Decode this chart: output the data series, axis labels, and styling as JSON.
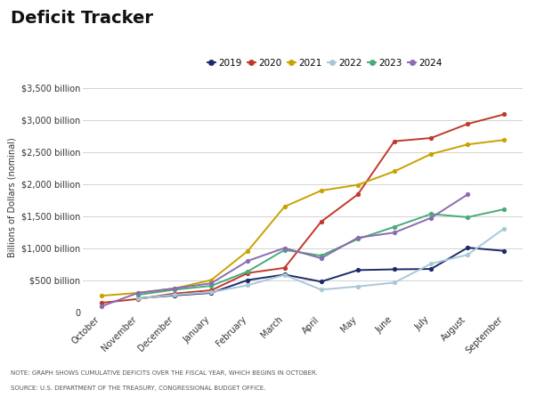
{
  "title": "Deficit Tracker",
  "ylabel": "Billions of Dollars (nominal)",
  "months": [
    "October",
    "November",
    "December",
    "January",
    "February",
    "March",
    "April",
    "May",
    "June",
    "July",
    "August",
    "September"
  ],
  "series": {
    "2019": {
      "color": "#1b2a6b",
      "values": [
        null,
        220,
        265,
        305,
        505,
        590,
        480,
        660,
        672,
        678,
        1010,
        960
      ]
    },
    "2020": {
      "color": "#c0392b",
      "values": [
        150,
        210,
        295,
        345,
        615,
        695,
        1415,
        1840,
        2670,
        2720,
        2940,
        3090
      ]
    },
    "2021": {
      "color": "#c8a200",
      "values": [
        260,
        305,
        375,
        505,
        960,
        1650,
        1900,
        1990,
        2200,
        2470,
        2620,
        2690
      ]
    },
    "2022": {
      "color": "#a8c8d8",
      "values": [
        null,
        215,
        275,
        315,
        425,
        585,
        355,
        405,
        465,
        760,
        900,
        1310
      ]
    },
    "2023": {
      "color": "#4aaa7a",
      "values": [
        null,
        275,
        355,
        415,
        640,
        975,
        885,
        1145,
        1335,
        1535,
        1485,
        1610
      ]
    },
    "2024": {
      "color": "#8b6bb1",
      "values": [
        95,
        305,
        375,
        455,
        805,
        1005,
        845,
        1165,
        1245,
        1475,
        1840,
        null
      ]
    }
  },
  "ylim": [
    0,
    3600
  ],
  "yticks": [
    0,
    500,
    1000,
    1500,
    2000,
    2500,
    3000,
    3500
  ],
  "ytick_labels": [
    "0",
    "$500 billion",
    "$1,000 billion",
    "$1,500 billion",
    "$2,000 billion",
    "$2,500 billion",
    "$3,000 billion",
    "$3,500 billion"
  ],
  "note": "NOTE: GRAPH SHOWS CUMULATIVE DEFICITS OVER THE FISCAL YEAR, WHICH BEGINS IN OCTOBER.",
  "source": "SOURCE: U.S. DEPARTMENT OF THE TREASURY, CONGRESSIONAL BUDGET OFFICE.",
  "background_color": "#ffffff",
  "grid_color": "#cccccc",
  "legend_order": [
    "2019",
    "2020",
    "2021",
    "2022",
    "2023",
    "2024"
  ]
}
